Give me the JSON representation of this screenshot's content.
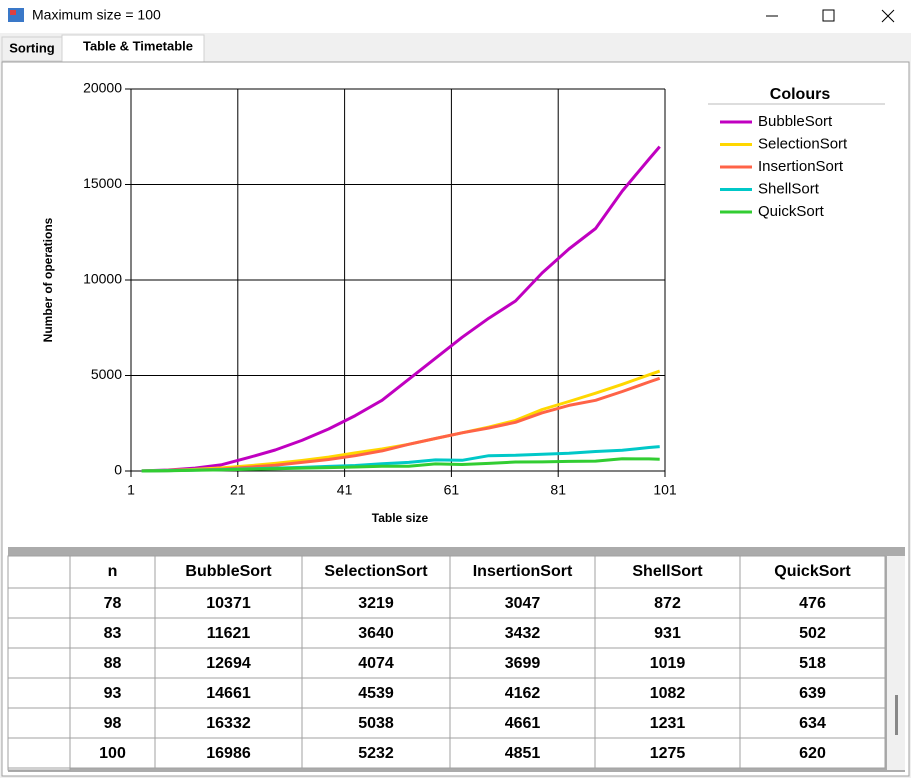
{
  "window": {
    "title": "Maximum size = 100"
  },
  "tabs": [
    "Sorting",
    "Table & Timetable"
  ],
  "chart_data": {
    "type": "line",
    "xlabel": "Table size",
    "ylabel": "Number of operations",
    "legend_title": "Colours",
    "legend": "top-right",
    "grid": true,
    "x": [
      3,
      8,
      13,
      18,
      23,
      28,
      33,
      38,
      43,
      48,
      53,
      58,
      63,
      68,
      73,
      78,
      83,
      88,
      93,
      98,
      100
    ],
    "xlim": [
      1,
      101
    ],
    "xticks": [
      1,
      21,
      41,
      61,
      81,
      101
    ],
    "ylim": [
      0,
      20000
    ],
    "yticks": [
      0,
      5000,
      10000,
      15000,
      20000
    ],
    "series": [
      {
        "name": "BubbleSort",
        "color": "#c000c0",
        "values": [
          5,
          50,
          150,
          330,
          700,
          1100,
          1600,
          2200,
          2900,
          3700,
          4800,
          5900,
          7000,
          8000,
          8900,
          10371,
          11621,
          12694,
          14661,
          16332,
          16986
        ]
      },
      {
        "name": "SelectionSort",
        "color": "#ffd700",
        "values": [
          3,
          30,
          85,
          160,
          270,
          400,
          550,
          730,
          950,
          1150,
          1400,
          1700,
          2000,
          2300,
          2650,
          3219,
          3640,
          4074,
          4539,
          5038,
          5232
        ]
      },
      {
        "name": "InsertionSort",
        "color": "#ff6347",
        "values": [
          2,
          20,
          50,
          100,
          200,
          300,
          450,
          600,
          800,
          1050,
          1400,
          1700,
          2000,
          2250,
          2550,
          3047,
          3432,
          3699,
          4162,
          4661,
          4851
        ]
      },
      {
        "name": "ShellSort",
        "color": "#00c8c8",
        "values": [
          3,
          20,
          45,
          75,
          110,
          150,
          190,
          240,
          290,
          380,
          450,
          580,
          560,
          800,
          820,
          872,
          931,
          1019,
          1082,
          1231,
          1275
        ]
      },
      {
        "name": "QuickSort",
        "color": "#32cd32",
        "values": [
          2,
          15,
          35,
          60,
          90,
          120,
          150,
          180,
          210,
          250,
          250,
          370,
          340,
          400,
          470,
          476,
          502,
          518,
          639,
          634,
          620
        ]
      }
    ]
  },
  "table": {
    "columns": [
      "n",
      "BubbleSort",
      "SelectionSort",
      "InsertionSort",
      "ShellSort",
      "QuickSort"
    ],
    "rows": [
      [
        78,
        10371,
        3219,
        3047,
        872,
        476
      ],
      [
        83,
        11621,
        3640,
        3432,
        931,
        502
      ],
      [
        88,
        12694,
        4074,
        3699,
        1019,
        518
      ],
      [
        93,
        14661,
        4539,
        4162,
        1082,
        639
      ],
      [
        98,
        16332,
        5038,
        4661,
        1231,
        634
      ],
      [
        100,
        16986,
        5232,
        4851,
        1275,
        620
      ]
    ]
  }
}
